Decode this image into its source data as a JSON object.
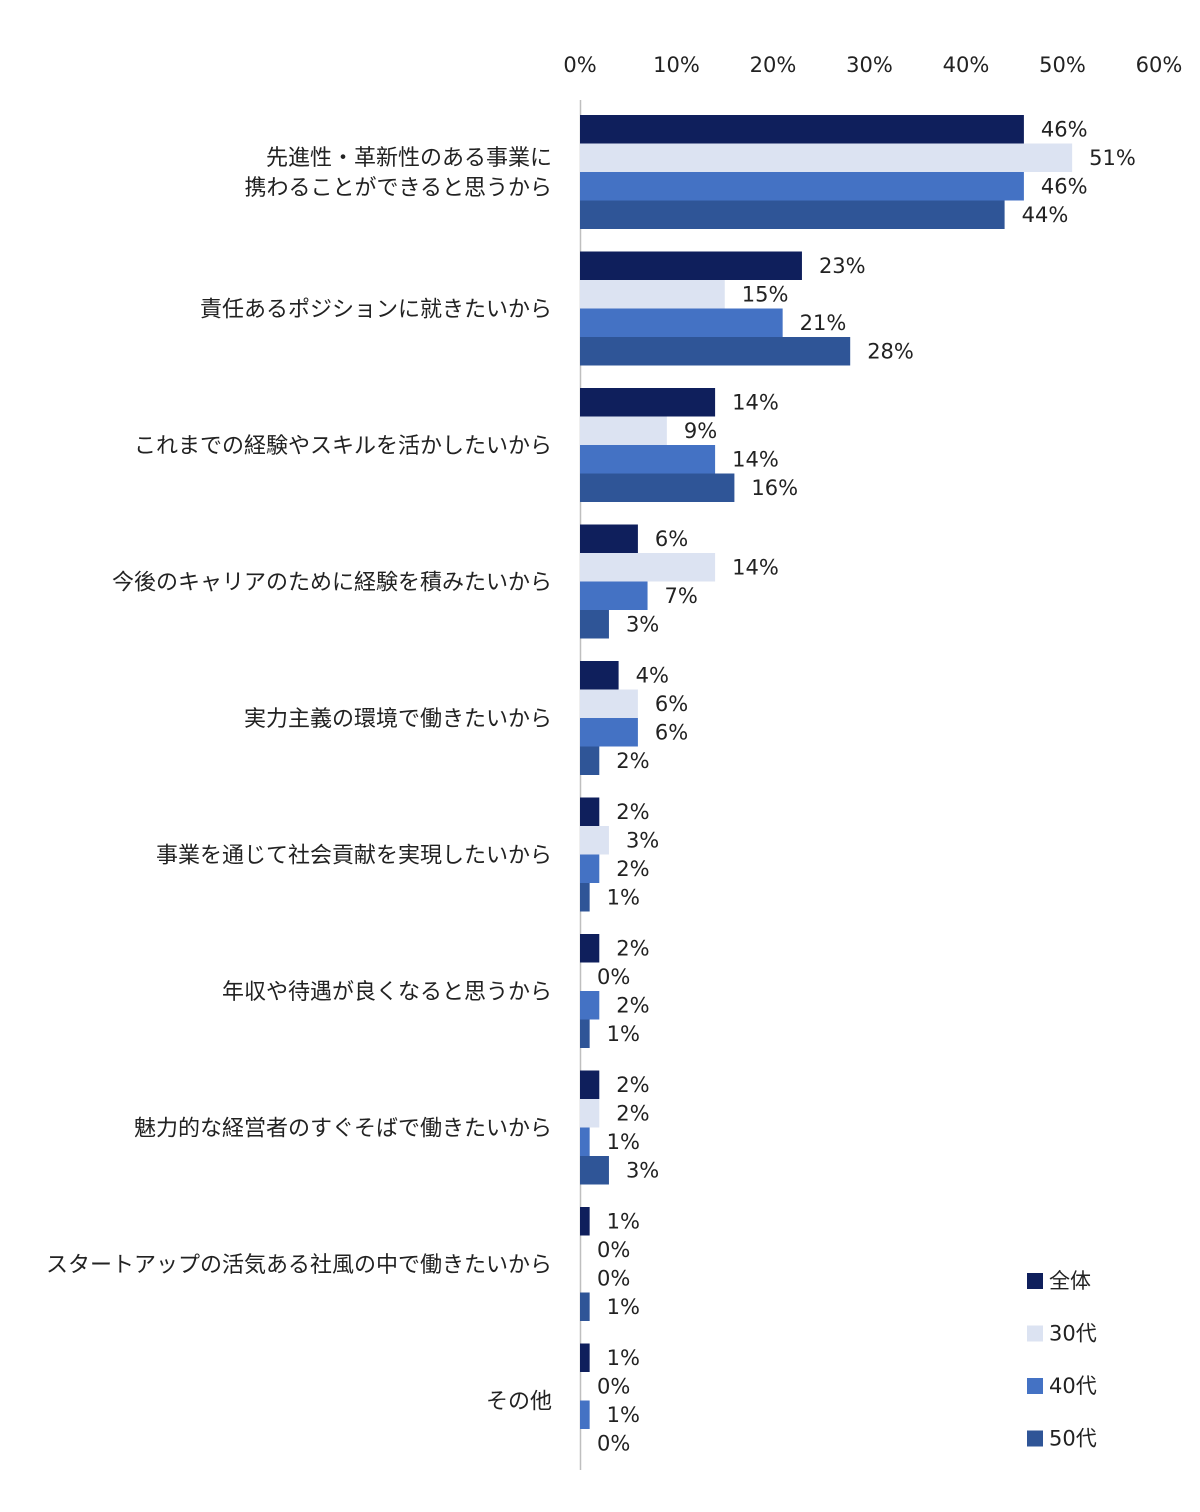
{
  "chart_data": {
    "type": "bar",
    "orientation": "horizontal",
    "categories": [
      [
        "先進性・革新性のある事業に",
        "携わることができると思うから"
      ],
      [
        "責任あるポジションに就きたいから"
      ],
      [
        "これまでの経験やスキルを活かしたいから"
      ],
      [
        "今後のキャリアのために経験を積みたいから"
      ],
      [
        "実力主義の環境で働きたいから"
      ],
      [
        "事業を通じて社会貢献を実現したいから"
      ],
      [
        "年収や待遇が良くなると思うから"
      ],
      [
        "魅力的な経営者のすぐそばで働きたいから"
      ],
      [
        "スタートアップの活気ある社風の中で働きたいから"
      ],
      [
        "その他"
      ]
    ],
    "series": [
      {
        "name": "全体",
        "color": "#0f1f5c",
        "values": [
          46,
          23,
          14,
          6,
          4,
          2,
          2,
          2,
          1,
          1
        ]
      },
      {
        "name": "30代",
        "color": "#dce3f2",
        "values": [
          51,
          15,
          9,
          14,
          6,
          3,
          0,
          2,
          0,
          0
        ]
      },
      {
        "name": "40代",
        "color": "#4472c4",
        "values": [
          46,
          21,
          14,
          7,
          6,
          2,
          2,
          1,
          0,
          1
        ]
      },
      {
        "name": "50代",
        "color": "#2f5597",
        "values": [
          44,
          28,
          16,
          3,
          2,
          1,
          1,
          3,
          1,
          0
        ]
      }
    ],
    "xlim": [
      0,
      60
    ],
    "xticks": [
      "0%",
      "10%",
      "20%",
      "30%",
      "40%",
      "50%",
      "60%"
    ],
    "value_suffix": "%",
    "axis_position": "top",
    "grid": false,
    "legend": "bottom-right"
  }
}
